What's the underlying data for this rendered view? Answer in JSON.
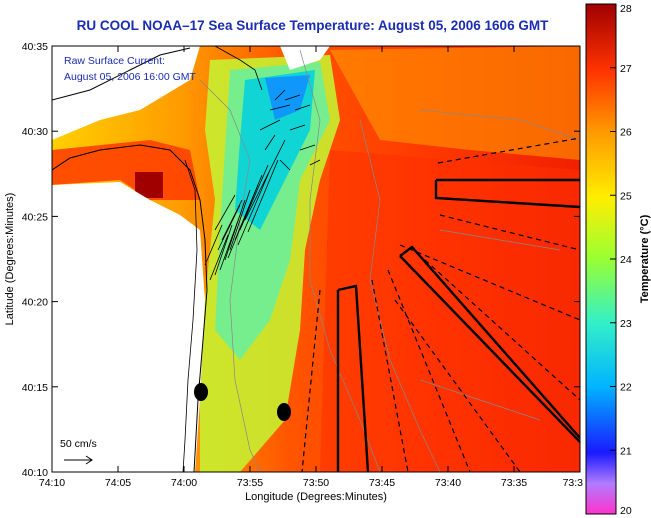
{
  "title": "RU COOL  NOAA–17  Sea Surface Temperature:  August 05, 2006 1606 GMT",
  "legend_text": {
    "line1": "Raw Surface Current:",
    "line2": "August 05, 2006 16:00 GMT"
  },
  "scale_label": "50 cm/s",
  "axes": {
    "xlabel": "Longitude (Degrees:Minutes)",
    "ylabel": "Latitude (Degrees:Minutes)",
    "x_ticks": [
      "74:10",
      "74:05",
      "74:00",
      "73:55",
      "73:50",
      "73:45",
      "73:40",
      "73:35",
      "73:3"
    ],
    "y_ticks": [
      "40:35",
      "40:30",
      "40:25",
      "40:20",
      "40:15",
      "40:10"
    ]
  },
  "colorbar": {
    "label": "Temperature (°C)",
    "ticks": [
      "28",
      "27",
      "26",
      "25",
      "24",
      "23",
      "22",
      "21",
      "20"
    ],
    "min": 20,
    "max": 28
  },
  "colors": {
    "title": "#1a2cb0",
    "land": "#ffffff"
  }
}
